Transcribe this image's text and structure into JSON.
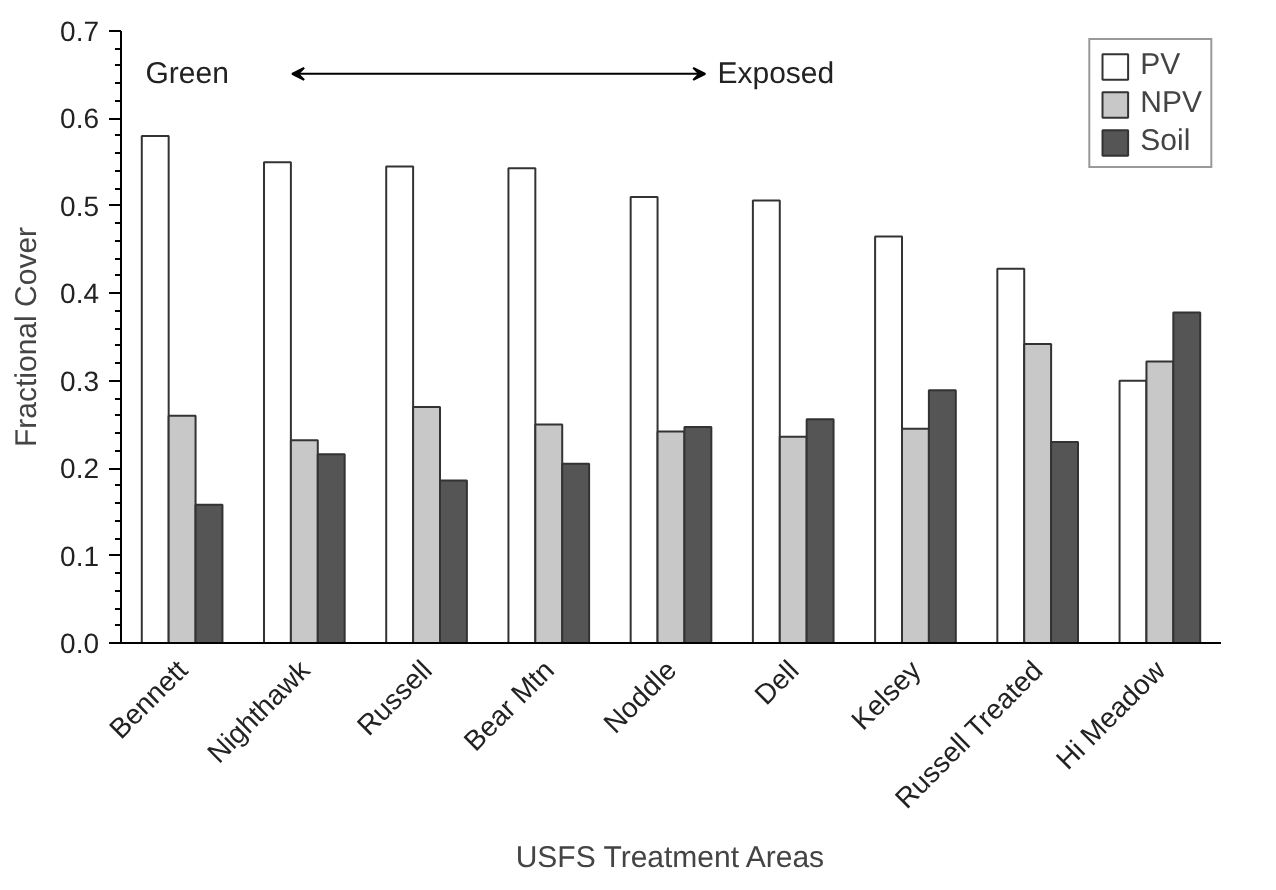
{
  "chart_data": {
    "type": "bar",
    "xlabel": "USFS Treatment Areas",
    "ylabel": "Fractional Cover",
    "categories": [
      "Bennett",
      "Nighthawk",
      "Russell",
      "Bear Mtn",
      "Noddle",
      "Dell",
      "Kelsey",
      "Russell Treated",
      "Hi Meadow"
    ],
    "series": [
      {
        "name": "PV",
        "color": "#ffffff",
        "values": [
          0.58,
          0.55,
          0.545,
          0.543,
          0.51,
          0.506,
          0.465,
          0.428,
          0.3
        ]
      },
      {
        "name": "NPV",
        "color": "#c8c8c8",
        "values": [
          0.26,
          0.232,
          0.27,
          0.25,
          0.242,
          0.236,
          0.245,
          0.342,
          0.322
        ]
      },
      {
        "name": "Soil",
        "color": "#555555",
        "values": [
          0.158,
          0.216,
          0.186,
          0.205,
          0.247,
          0.256,
          0.289,
          0.23,
          0.378
        ]
      }
    ],
    "ylim": [
      0,
      0.7
    ],
    "yticks": [
      {
        "value": 0,
        "label": "0.0"
      },
      {
        "value": 0.1,
        "label": "0.1"
      },
      {
        "value": 0.2,
        "label": "0.2"
      },
      {
        "value": 0.3,
        "label": "0.3"
      },
      {
        "value": 0.4,
        "label": "0.4"
      },
      {
        "value": 0.5,
        "label": "0.5"
      },
      {
        "value": 0.6,
        "label": "0.6"
      },
      {
        "value": 0.7,
        "label": "0.7"
      }
    ],
    "annotations": [
      "Green",
      "Exposed"
    ],
    "legend": "top right",
    "grid": false
  }
}
